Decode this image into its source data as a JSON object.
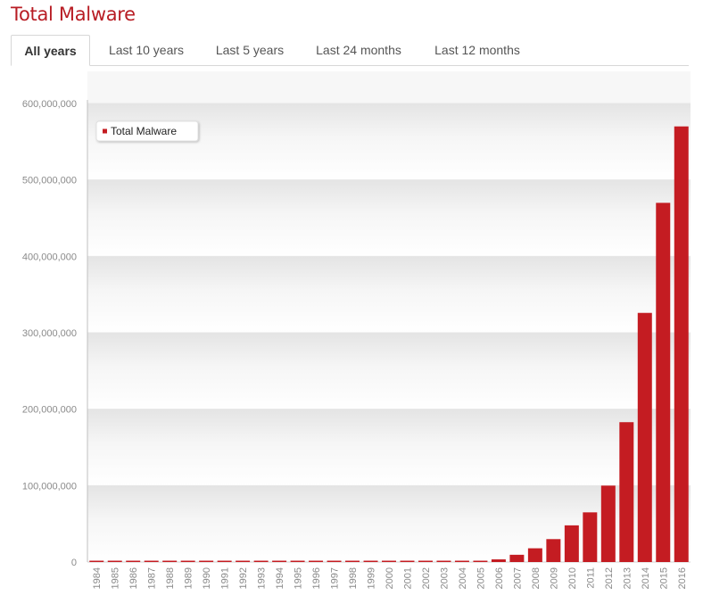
{
  "page": {
    "title": "Total Malware"
  },
  "tabs": [
    {
      "label": "All years",
      "active": true
    },
    {
      "label": "Last 10 years",
      "active": false
    },
    {
      "label": "Last 5 years",
      "active": false
    },
    {
      "label": "Last 24 months",
      "active": false
    },
    {
      "label": "Last 12 months",
      "active": false
    }
  ],
  "colors": {
    "bar": "#c41c22",
    "title": "#b81d24",
    "tick": "#8a8a8a"
  },
  "chart_data": {
    "type": "bar",
    "title": "",
    "xlabel": "",
    "ylabel": "",
    "ylim": [
      0,
      600000000
    ],
    "yticks": [
      0,
      100000000,
      200000000,
      300000000,
      400000000,
      500000000,
      600000000
    ],
    "ytick_labels": [
      "0",
      "100,000,000",
      "200,000,000",
      "300,000,000",
      "400,000,000",
      "500,000,000",
      "600,000,000"
    ],
    "grid": true,
    "legend_position": "top-left",
    "categories": [
      "1984",
      "1985",
      "1986",
      "1987",
      "1988",
      "1989",
      "1990",
      "1991",
      "1992",
      "1993",
      "1994",
      "1995",
      "1996",
      "1997",
      "1998",
      "1999",
      "2000",
      "2001",
      "2002",
      "2003",
      "2004",
      "2005",
      "2006",
      "2007",
      "2008",
      "2009",
      "2010",
      "2011",
      "2012",
      "2013",
      "2014",
      "2015",
      "2016"
    ],
    "series": [
      {
        "name": "Total Malware",
        "values": [
          0,
          0,
          0,
          0,
          0,
          0,
          0,
          0,
          0,
          0,
          0,
          0,
          0,
          0,
          0,
          100000,
          200000,
          300000,
          400000,
          600000,
          900000,
          1500000,
          3500000,
          9500000,
          18000000,
          30000000,
          48000000,
          65000000,
          100000000,
          183000000,
          326000000,
          470000000,
          570000000
        ]
      }
    ]
  }
}
